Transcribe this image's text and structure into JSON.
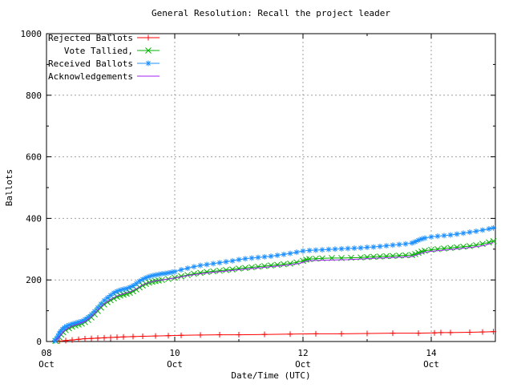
{
  "chart_data": {
    "type": "line",
    "title": "General Resolution: Recall the project leader",
    "xlabel": "Date/Time (UTC)",
    "ylabel": "Ballots",
    "background": "#ffffff",
    "frame_color": "#000000",
    "grid": true,
    "grid_color": "#a0a0a0",
    "legend_position": "top-left-inside",
    "x_axis": {
      "unit": "day of October (UTC)",
      "min": 8,
      "max": 15,
      "minor_step": 1,
      "major_ticks": [
        {
          "v": 8,
          "label": [
            "08",
            "Oct"
          ]
        },
        {
          "v": 10,
          "label": [
            "10",
            "Oct"
          ]
        },
        {
          "v": 12,
          "label": [
            "12",
            "Oct"
          ]
        },
        {
          "v": 14,
          "label": [
            "14",
            "Oct"
          ]
        }
      ]
    },
    "y_axis": {
      "min": 0,
      "max": 1000,
      "minor_step": 100,
      "major_ticks": [
        {
          "v": 0,
          "label": "0"
        },
        {
          "v": 200,
          "label": "200"
        },
        {
          "v": 400,
          "label": "400"
        },
        {
          "v": 600,
          "label": "600"
        },
        {
          "v": 800,
          "label": "800"
        },
        {
          "v": 1000,
          "label": "1000"
        }
      ]
    },
    "series": [
      {
        "name": "Rejected Ballots",
        "color": "#ff0000",
        "marker": "plus",
        "points": [
          [
            8.2,
            1
          ],
          [
            8.3,
            3
          ],
          [
            8.4,
            5
          ],
          [
            8.5,
            7
          ],
          [
            8.6,
            9
          ],
          [
            8.7,
            10
          ],
          [
            8.8,
            11
          ],
          [
            8.9,
            12
          ],
          [
            9.0,
            13
          ],
          [
            9.1,
            14
          ],
          [
            9.2,
            15
          ],
          [
            9.35,
            16
          ],
          [
            9.5,
            17
          ],
          [
            9.7,
            18
          ],
          [
            9.9,
            19
          ],
          [
            10.1,
            20
          ],
          [
            10.4,
            21
          ],
          [
            10.7,
            22
          ],
          [
            11.0,
            22
          ],
          [
            11.4,
            23
          ],
          [
            11.8,
            24
          ],
          [
            12.2,
            25
          ],
          [
            12.6,
            25
          ],
          [
            13.0,
            26
          ],
          [
            13.4,
            27
          ],
          [
            13.8,
            27
          ],
          [
            14.05,
            28
          ],
          [
            14.15,
            29
          ],
          [
            14.3,
            29
          ],
          [
            14.6,
            30
          ],
          [
            14.8,
            31
          ],
          [
            14.97,
            32
          ]
        ]
      },
      {
        "name": "Vote Tallied,",
        "color": "#00b000",
        "marker": "cross",
        "points": [
          [
            8.14,
            2
          ],
          [
            8.17,
            7
          ],
          [
            8.2,
            14
          ],
          [
            8.23,
            22
          ],
          [
            8.26,
            30
          ],
          [
            8.3,
            37
          ],
          [
            8.35,
            43
          ],
          [
            8.4,
            48
          ],
          [
            8.45,
            52
          ],
          [
            8.5,
            55
          ],
          [
            8.55,
            58
          ],
          [
            8.6,
            63
          ],
          [
            8.65,
            70
          ],
          [
            8.7,
            78
          ],
          [
            8.75,
            88
          ],
          [
            8.8,
            99
          ],
          [
            8.85,
            110
          ],
          [
            8.9,
            120
          ],
          [
            8.95,
            128
          ],
          [
            9.0,
            134
          ],
          [
            9.05,
            140
          ],
          [
            9.1,
            145
          ],
          [
            9.15,
            149
          ],
          [
            9.2,
            152
          ],
          [
            9.25,
            155
          ],
          [
            9.3,
            158
          ],
          [
            9.35,
            163
          ],
          [
            9.4,
            169
          ],
          [
            9.45,
            176
          ],
          [
            9.5,
            182
          ],
          [
            9.55,
            187
          ],
          [
            9.6,
            191
          ],
          [
            9.65,
            194
          ],
          [
            9.7,
            196
          ],
          [
            9.75,
            198
          ],
          [
            9.8,
            200
          ],
          [
            9.9,
            203
          ],
          [
            10.0,
            207
          ],
          [
            10.1,
            212
          ],
          [
            10.2,
            216
          ],
          [
            10.3,
            220
          ],
          [
            10.4,
            223
          ],
          [
            10.5,
            226
          ],
          [
            10.6,
            228
          ],
          [
            10.7,
            230
          ],
          [
            10.8,
            232
          ],
          [
            10.9,
            234
          ],
          [
            11.0,
            237
          ],
          [
            11.1,
            239
          ],
          [
            11.2,
            241
          ],
          [
            11.3,
            243
          ],
          [
            11.4,
            245
          ],
          [
            11.5,
            247
          ],
          [
            11.6,
            249
          ],
          [
            11.7,
            251
          ],
          [
            11.8,
            253
          ],
          [
            11.9,
            257
          ],
          [
            12.0,
            262
          ],
          [
            12.05,
            266
          ],
          [
            12.1,
            268
          ],
          [
            12.2,
            269
          ],
          [
            12.3,
            270
          ],
          [
            12.45,
            271
          ],
          [
            12.6,
            271
          ],
          [
            12.75,
            272
          ],
          [
            12.9,
            273
          ],
          [
            13.0,
            274
          ],
          [
            13.1,
            275
          ],
          [
            13.2,
            276
          ],
          [
            13.3,
            277
          ],
          [
            13.4,
            278
          ],
          [
            13.5,
            279
          ],
          [
            13.6,
            280
          ],
          [
            13.7,
            281
          ],
          [
            13.75,
            284
          ],
          [
            13.8,
            288
          ],
          [
            13.85,
            292
          ],
          [
            13.9,
            295
          ],
          [
            14.0,
            298
          ],
          [
            14.1,
            300
          ],
          [
            14.2,
            302
          ],
          [
            14.3,
            304
          ],
          [
            14.4,
            306
          ],
          [
            14.5,
            308
          ],
          [
            14.6,
            310
          ],
          [
            14.7,
            313
          ],
          [
            14.8,
            317
          ],
          [
            14.9,
            322
          ],
          [
            14.97,
            326
          ]
        ]
      },
      {
        "name": "Received Ballots",
        "color": "#1e90ff",
        "marker": "asterisk",
        "points": [
          [
            8.13,
            3
          ],
          [
            8.16,
            10
          ],
          [
            8.18,
            18
          ],
          [
            8.2,
            26
          ],
          [
            8.22,
            33
          ],
          [
            8.25,
            40
          ],
          [
            8.28,
            45
          ],
          [
            8.31,
            49
          ],
          [
            8.35,
            53
          ],
          [
            8.4,
            57
          ],
          [
            8.45,
            60
          ],
          [
            8.5,
            63
          ],
          [
            8.55,
            66
          ],
          [
            8.6,
            72
          ],
          [
            8.65,
            79
          ],
          [
            8.7,
            88
          ],
          [
            8.75,
            98
          ],
          [
            8.8,
            110
          ],
          [
            8.85,
            122
          ],
          [
            8.9,
            133
          ],
          [
            8.95,
            142
          ],
          [
            9.0,
            150
          ],
          [
            9.05,
            158
          ],
          [
            9.1,
            163
          ],
          [
            9.15,
            167
          ],
          [
            9.2,
            170
          ],
          [
            9.25,
            172
          ],
          [
            9.3,
            176
          ],
          [
            9.35,
            181
          ],
          [
            9.4,
            188
          ],
          [
            9.45,
            196
          ],
          [
            9.5,
            202
          ],
          [
            9.55,
            207
          ],
          [
            9.6,
            211
          ],
          [
            9.65,
            214
          ],
          [
            9.7,
            216
          ],
          [
            9.75,
            218
          ],
          [
            9.8,
            220
          ],
          [
            9.85,
            221
          ],
          [
            9.9,
            223
          ],
          [
            9.95,
            225
          ],
          [
            10.0,
            227
          ],
          [
            10.1,
            233
          ],
          [
            10.2,
            238
          ],
          [
            10.3,
            243
          ],
          [
            10.4,
            247
          ],
          [
            10.5,
            250
          ],
          [
            10.6,
            253
          ],
          [
            10.7,
            256
          ],
          [
            10.8,
            259
          ],
          [
            10.9,
            262
          ],
          [
            11.0,
            266
          ],
          [
            11.1,
            269
          ],
          [
            11.2,
            271
          ],
          [
            11.3,
            273
          ],
          [
            11.4,
            275
          ],
          [
            11.5,
            277
          ],
          [
            11.6,
            280
          ],
          [
            11.7,
            283
          ],
          [
            11.8,
            286
          ],
          [
            11.9,
            290
          ],
          [
            12.0,
            294
          ],
          [
            12.1,
            296
          ],
          [
            12.2,
            297
          ],
          [
            12.3,
            298
          ],
          [
            12.4,
            299
          ],
          [
            12.5,
            300
          ],
          [
            12.6,
            301
          ],
          [
            12.7,
            302
          ],
          [
            12.8,
            303
          ],
          [
            12.9,
            304
          ],
          [
            13.0,
            306
          ],
          [
            13.1,
            307
          ],
          [
            13.2,
            309
          ],
          [
            13.3,
            311
          ],
          [
            13.4,
            313
          ],
          [
            13.5,
            315
          ],
          [
            13.6,
            317
          ],
          [
            13.7,
            320
          ],
          [
            13.75,
            324
          ],
          [
            13.8,
            329
          ],
          [
            13.85,
            333
          ],
          [
            13.9,
            336
          ],
          [
            14.0,
            340
          ],
          [
            14.1,
            342
          ],
          [
            14.2,
            344
          ],
          [
            14.3,
            346
          ],
          [
            14.4,
            349
          ],
          [
            14.5,
            352
          ],
          [
            14.6,
            355
          ],
          [
            14.7,
            358
          ],
          [
            14.8,
            362
          ],
          [
            14.9,
            366
          ],
          [
            14.97,
            369
          ]
        ]
      },
      {
        "name": "Acknowledgements",
        "color": "#a020f0",
        "marker": "none",
        "points": [
          [
            8.14,
            3
          ],
          [
            8.2,
            16
          ],
          [
            8.26,
            32
          ],
          [
            8.32,
            41
          ],
          [
            8.4,
            50
          ],
          [
            8.5,
            57
          ],
          [
            8.6,
            65
          ],
          [
            8.7,
            81
          ],
          [
            8.8,
            102
          ],
          [
            8.9,
            123
          ],
          [
            9.0,
            137
          ],
          [
            9.1,
            148
          ],
          [
            9.2,
            155
          ],
          [
            9.3,
            161
          ],
          [
            9.4,
            171
          ],
          [
            9.5,
            184
          ],
          [
            9.6,
            192
          ],
          [
            9.7,
            197
          ],
          [
            9.8,
            200
          ],
          [
            9.9,
            203
          ],
          [
            10.0,
            206
          ],
          [
            10.2,
            214
          ],
          [
            10.4,
            220
          ],
          [
            10.6,
            225
          ],
          [
            10.8,
            229
          ],
          [
            11.0,
            233
          ],
          [
            11.2,
            237
          ],
          [
            11.4,
            241
          ],
          [
            11.6,
            245
          ],
          [
            11.8,
            249
          ],
          [
            11.95,
            254
          ],
          [
            12.05,
            261
          ],
          [
            12.15,
            263
          ],
          [
            12.3,
            264
          ],
          [
            12.5,
            265
          ],
          [
            12.7,
            266
          ],
          [
            12.9,
            268
          ],
          [
            13.1,
            270
          ],
          [
            13.3,
            272
          ],
          [
            13.5,
            274
          ],
          [
            13.7,
            276
          ],
          [
            13.8,
            283
          ],
          [
            13.9,
            290
          ],
          [
            14.0,
            293
          ],
          [
            14.2,
            297
          ],
          [
            14.4,
            301
          ],
          [
            14.6,
            305
          ],
          [
            14.8,
            311
          ],
          [
            14.97,
            321
          ]
        ]
      }
    ]
  }
}
